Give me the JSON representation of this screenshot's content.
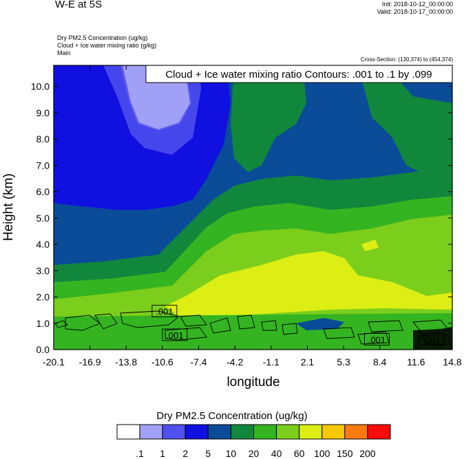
{
  "header": {
    "title": "W-E at 5S",
    "init": "Init: 2018-10-12_00:00:00",
    "valid": "Valid: 2018-10-17_00:00:00",
    "field1": "Dry PM2.5 Concentration   (ug/kg)",
    "field2": "Cloud + Ice water mixing ratio   (g/kg)",
    "field3": "Main",
    "cross_section": "Cross-Section: (130,374) to (454,374)"
  },
  "chart_data": {
    "type": "heatmap",
    "contour_label": "Cloud + Ice water mixing ratio Contours: .001 to .1 by .099",
    "xlabel": "longitude",
    "ylabel": "Height (km)",
    "xlim": [
      -20.1,
      14.8
    ],
    "ylim": [
      0,
      10.8
    ],
    "x_ticks": [
      "-20.1",
      "-16.9",
      "-13.8",
      "-10.6",
      "-7.4",
      "-4.2",
      "-1.1",
      "2.1",
      "5.3",
      "8.4",
      "11.6",
      "14.8"
    ],
    "y_ticks": [
      "0.0",
      "1.0",
      "2.0",
      "3.0",
      "4.0",
      "5.0",
      "6.0",
      "7.0",
      "8.0",
      "9.0",
      "10.0"
    ],
    "contour_labels": [
      {
        "text": ".001",
        "x": -10.4,
        "y": 1.45
      },
      {
        "text": ".001",
        "x": -9.5,
        "y": 0.55
      },
      {
        "text": ".001",
        "x": 8.2,
        "y": 0.38
      },
      {
        "text": ".001",
        "x": 13.0,
        "y": 0.38
      }
    ],
    "colorbar": {
      "title": "Dry PM2.5 Concentration  (ug/kg)",
      "labels": [
        ".1",
        "1",
        "2",
        "5",
        "10",
        "20",
        "40",
        "60",
        "100",
        "150",
        "200"
      ],
      "colors": [
        "#ffffff",
        "#a0a0f7",
        "#5050ee",
        "#1010e0",
        "#0a4c98",
        "#11873c",
        "#35b421",
        "#7cce1c",
        "#dcee14",
        "#f8c800",
        "#f87a10",
        "#f80c0c"
      ]
    }
  }
}
